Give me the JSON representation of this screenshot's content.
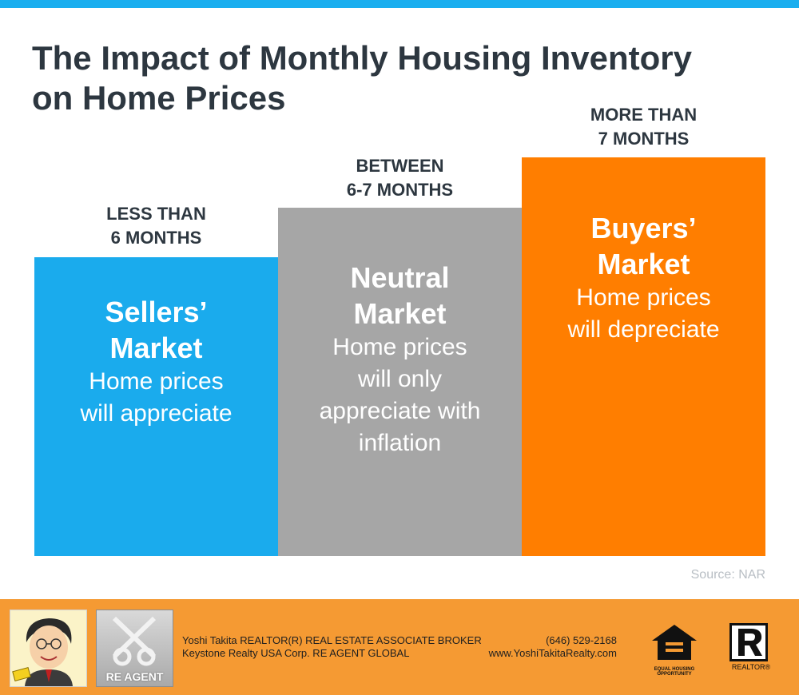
{
  "title": {
    "line1": "The Impact of Monthly Housing Inventory",
    "line2": "on Home Prices"
  },
  "columns": [
    {
      "label_line1": "LESS THAN",
      "label_line2": "6 MONTHS",
      "market_line1": "Sellers’",
      "market_line2": "Market",
      "desc_lines": [
        "Home prices",
        "will appreciate"
      ],
      "color": "#1aabed"
    },
    {
      "label_line1": "BETWEEN",
      "label_line2": "6-7 MONTHS",
      "market_line1": "Neutral",
      "market_line2": "Market",
      "desc_lines": [
        "Home prices",
        "will only",
        "appreciate with",
        "inflation"
      ],
      "color": "#a6a6a6"
    },
    {
      "label_line1": "MORE THAN",
      "label_line2": "7 MONTHS",
      "market_line1": "Buyers’",
      "market_line2": "Market",
      "desc_lines": [
        "Home prices",
        "will depreciate"
      ],
      "color": "#ff7e00"
    }
  ],
  "source": "Source: NAR",
  "footer": {
    "background": "#f59a33",
    "agent_line1": "Yoshi Takita REALTOR(R) REAL ESTATE ASSOCIATE BROKER",
    "agent_line2": "Keystone Realty USA Corp.  RE AGENT GLOBAL",
    "phone": "(646) 529-2168",
    "website": "www.YoshiTakitaRealty.com",
    "re_agent_logo_text": "RE AGENT",
    "eho_text_line1": "EQUAL HOUSING",
    "eho_text_line2": "OPPORTUNITY",
    "realtor_text": "REALTOR®",
    "avatar_icon": "caricature-portrait-icon"
  }
}
